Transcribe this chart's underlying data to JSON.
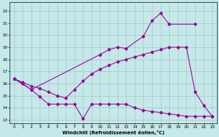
{
  "bg_color": "#c5e8e8",
  "grid_color": "#9abcbc",
  "line_color": "#990099",
  "xlabel": "Windchill (Refroidissement éolien,°C)",
  "xlim": [
    -0.5,
    23.5
  ],
  "ylim": [
    12.7,
    22.7
  ],
  "yticks": [
    13,
    14,
    15,
    16,
    17,
    18,
    19,
    20,
    21,
    22
  ],
  "xticks": [
    0,
    1,
    2,
    3,
    4,
    5,
    6,
    7,
    8,
    9,
    10,
    11,
    12,
    13,
    14,
    15,
    16,
    17,
    18,
    19,
    20,
    21,
    22,
    23
  ],
  "line_upper_x": [
    0,
    1,
    2,
    10,
    11,
    12,
    13,
    15,
    16,
    17,
    18,
    21
  ],
  "line_upper_y": [
    16.4,
    16.0,
    15.5,
    18.4,
    18.8,
    19.0,
    18.9,
    19.9,
    21.2,
    21.8,
    20.9,
    20.9
  ],
  "line_mid_x": [
    0,
    1,
    2,
    3,
    4,
    5,
    6,
    7,
    8,
    9,
    10,
    11,
    12,
    13,
    14,
    15,
    16,
    17,
    18,
    19,
    20,
    21,
    22,
    23
  ],
  "line_mid_y": [
    16.4,
    16.1,
    15.8,
    15.6,
    15.3,
    15.0,
    14.8,
    15.5,
    16.2,
    16.8,
    17.2,
    17.5,
    17.8,
    18.0,
    18.2,
    18.4,
    18.6,
    18.8,
    19.0,
    19.0,
    19.0,
    15.3,
    14.2,
    13.3
  ],
  "line_lower_x": [
    0,
    2,
    3,
    4,
    5,
    6,
    7,
    8,
    9,
    10,
    11,
    12,
    13,
    14,
    15,
    16,
    17,
    18,
    19,
    20,
    21,
    22,
    23
  ],
  "line_lower_y": [
    16.4,
    15.5,
    14.9,
    14.3,
    14.3,
    14.3,
    14.3,
    13.1,
    14.3,
    14.3,
    14.3,
    14.3,
    14.3,
    14.0,
    13.8,
    13.7,
    13.6,
    13.5,
    13.4,
    13.3,
    13.3,
    13.3,
    13.3
  ]
}
